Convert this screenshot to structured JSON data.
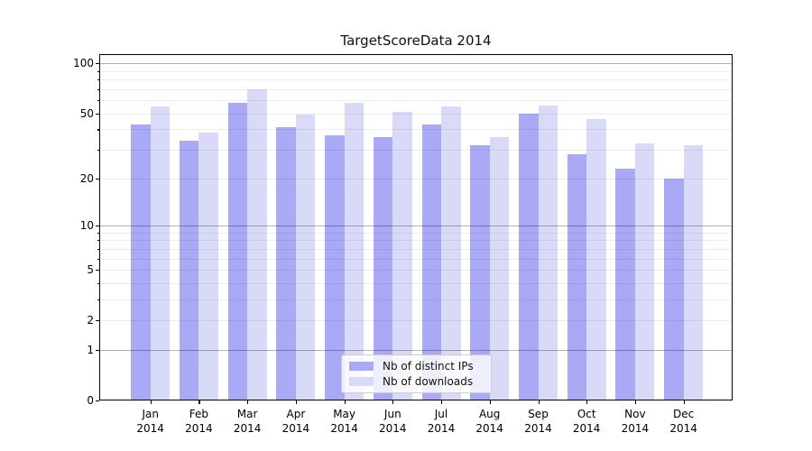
{
  "title": "TargetScoreData 2014",
  "chart_data": {
    "type": "bar",
    "title": "TargetScoreData 2014",
    "categories": [
      {
        "month": "Jan",
        "year": "2014"
      },
      {
        "month": "Feb",
        "year": "2014"
      },
      {
        "month": "Mar",
        "year": "2014"
      },
      {
        "month": "Apr",
        "year": "2014"
      },
      {
        "month": "May",
        "year": "2014"
      },
      {
        "month": "Jun",
        "year": "2014"
      },
      {
        "month": "Jul",
        "year": "2014"
      },
      {
        "month": "Aug",
        "year": "2014"
      },
      {
        "month": "Sep",
        "year": "2014"
      },
      {
        "month": "Oct",
        "year": "2014"
      },
      {
        "month": "Nov",
        "year": "2014"
      },
      {
        "month": "Dec",
        "year": "2014"
      }
    ],
    "series": [
      {
        "name": "Nb of distinct IPs",
        "color": "#a9a9f6",
        "values": [
          43,
          34,
          58,
          41,
          37,
          36,
          43,
          32,
          50,
          28,
          23,
          20
        ]
      },
      {
        "name": "Nb of downloads",
        "color": "#d9d9f8",
        "values": [
          55,
          38,
          70,
          49,
          58,
          51,
          55,
          36,
          56,
          46,
          33,
          32
        ]
      }
    ],
    "yscale": "log1p",
    "ylim": [
      0,
      113
    ],
    "yticks_labeled": [
      0,
      1,
      2,
      5,
      10,
      20,
      50,
      100
    ],
    "yticks_major": [
      1,
      10,
      100
    ],
    "yticks_minor_unlabeled": [
      3,
      4,
      6,
      7,
      8,
      9,
      30,
      40,
      60,
      70,
      80,
      90
    ],
    "grid": true,
    "legend_position": "lower center"
  }
}
